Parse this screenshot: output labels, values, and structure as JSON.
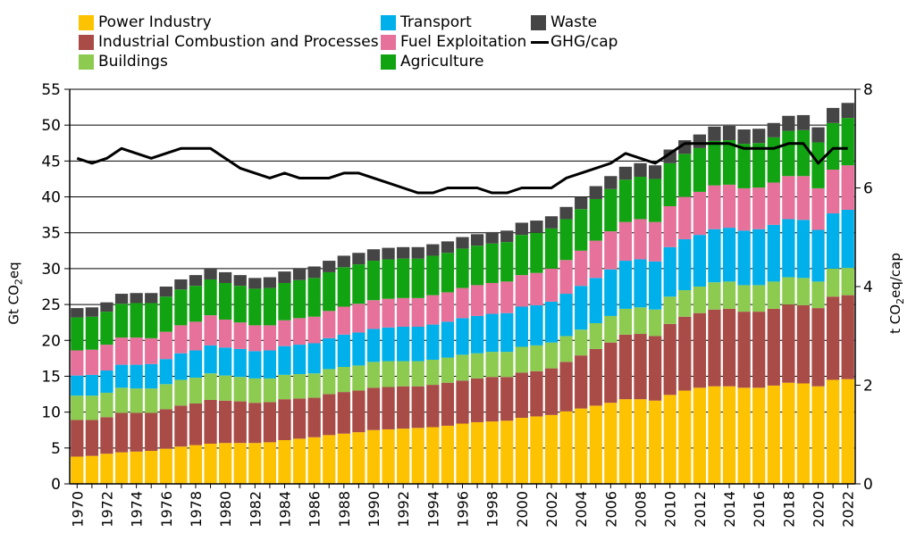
{
  "chart_data": {
    "type": "bar",
    "stacked": true,
    "x": [
      1970,
      1971,
      1972,
      1973,
      1974,
      1975,
      1976,
      1977,
      1978,
      1979,
      1980,
      1981,
      1982,
      1983,
      1984,
      1985,
      1986,
      1987,
      1988,
      1989,
      1990,
      1991,
      1992,
      1993,
      1994,
      1995,
      1996,
      1997,
      1998,
      1999,
      2000,
      2001,
      2002,
      2003,
      2004,
      2005,
      2006,
      2007,
      2008,
      2009,
      2010,
      2011,
      2012,
      2013,
      2014,
      2015,
      2016,
      2017,
      2018,
      2019,
      2020,
      2021,
      2022
    ],
    "x_tick_labels": [
      "1970",
      "1972",
      "1974",
      "1976",
      "1978",
      "1980",
      "1982",
      "1984",
      "1986",
      "1988",
      "1990",
      "1992",
      "1994",
      "1996",
      "1998",
      "2000",
      "2002",
      "2004",
      "2006",
      "2008",
      "2010",
      "2012",
      "2014",
      "2016",
      "2018",
      "2020",
      "2022"
    ],
    "series": [
      {
        "name": "Power Industry",
        "color": "#FDC300",
        "values": [
          3.8,
          3.9,
          4.2,
          4.4,
          4.5,
          4.6,
          4.9,
          5.2,
          5.4,
          5.6,
          5.7,
          5.7,
          5.7,
          5.8,
          6.1,
          6.3,
          6.5,
          6.8,
          7.0,
          7.2,
          7.5,
          7.6,
          7.7,
          7.8,
          7.9,
          8.1,
          8.4,
          8.6,
          8.7,
          8.8,
          9.2,
          9.4,
          9.6,
          10.1,
          10.5,
          10.9,
          11.3,
          11.8,
          11.8,
          11.6,
          12.4,
          13.0,
          13.4,
          13.6,
          13.6,
          13.4,
          13.4,
          13.7,
          14.1,
          14.0,
          13.6,
          14.5,
          14.6
        ]
      },
      {
        "name": "Industrial Combustion and Processes",
        "color": "#A94B47",
        "values": [
          5.1,
          5.0,
          5.1,
          5.5,
          5.4,
          5.3,
          5.5,
          5.7,
          5.8,
          6.1,
          5.9,
          5.8,
          5.6,
          5.6,
          5.7,
          5.6,
          5.5,
          5.7,
          5.8,
          5.8,
          5.9,
          5.9,
          5.9,
          5.8,
          5.9,
          6.0,
          6.0,
          6.1,
          6.2,
          6.1,
          6.3,
          6.3,
          6.5,
          6.9,
          7.4,
          7.9,
          8.4,
          9.0,
          9.1,
          9.0,
          9.9,
          10.3,
          10.4,
          10.7,
          10.8,
          10.6,
          10.6,
          10.7,
          10.9,
          10.9,
          10.9,
          11.6,
          11.7
        ]
      },
      {
        "name": "Buildings",
        "color": "#8CCB50",
        "values": [
          3.4,
          3.4,
          3.4,
          3.5,
          3.4,
          3.4,
          3.5,
          3.6,
          3.6,
          3.7,
          3.5,
          3.4,
          3.4,
          3.3,
          3.4,
          3.4,
          3.4,
          3.5,
          3.5,
          3.5,
          3.6,
          3.6,
          3.5,
          3.5,
          3.5,
          3.5,
          3.6,
          3.5,
          3.5,
          3.5,
          3.6,
          3.6,
          3.6,
          3.6,
          3.6,
          3.6,
          3.7,
          3.6,
          3.7,
          3.7,
          3.8,
          3.7,
          3.7,
          3.8,
          3.8,
          3.7,
          3.7,
          3.8,
          3.8,
          3.8,
          3.7,
          3.9,
          3.8
        ]
      },
      {
        "name": "Transport",
        "color": "#00B0EA",
        "values": [
          2.8,
          2.9,
          3.1,
          3.2,
          3.3,
          3.4,
          3.5,
          3.7,
          3.8,
          3.9,
          3.9,
          3.9,
          3.8,
          3.9,
          4.0,
          4.1,
          4.2,
          4.3,
          4.5,
          4.6,
          4.6,
          4.7,
          4.8,
          4.8,
          4.9,
          5.0,
          5.1,
          5.2,
          5.3,
          5.4,
          5.6,
          5.6,
          5.7,
          5.9,
          6.1,
          6.3,
          6.5,
          6.7,
          6.7,
          6.7,
          6.9,
          7.1,
          7.2,
          7.4,
          7.5,
          7.6,
          7.8,
          7.9,
          8.1,
          8.1,
          7.2,
          7.7,
          8.1
        ]
      },
      {
        "name": "Fuel Exploitation",
        "color": "#E6719B",
        "values": [
          3.5,
          3.5,
          3.6,
          3.8,
          3.8,
          3.6,
          3.8,
          3.9,
          4.0,
          4.2,
          3.9,
          3.7,
          3.6,
          3.5,
          3.6,
          3.7,
          3.7,
          3.8,
          3.9,
          4.0,
          4.0,
          4.0,
          4.0,
          4.0,
          4.1,
          4.1,
          4.2,
          4.3,
          4.3,
          4.4,
          4.4,
          4.5,
          4.6,
          4.7,
          4.9,
          5.2,
          5.3,
          5.4,
          5.6,
          5.5,
          5.7,
          5.9,
          6.0,
          6.1,
          6.0,
          5.9,
          5.8,
          5.9,
          6.0,
          6.1,
          5.8,
          6.1,
          6.2
        ]
      },
      {
        "name": "Agriculture",
        "color": "#12A312",
        "values": [
          4.6,
          4.6,
          4.6,
          4.7,
          4.8,
          4.9,
          4.9,
          5.0,
          5.0,
          5.0,
          5.1,
          5.1,
          5.1,
          5.2,
          5.2,
          5.3,
          5.4,
          5.4,
          5.5,
          5.5,
          5.5,
          5.5,
          5.5,
          5.5,
          5.5,
          5.5,
          5.5,
          5.5,
          5.5,
          5.5,
          5.6,
          5.6,
          5.6,
          5.7,
          5.8,
          5.8,
          5.9,
          5.9,
          5.9,
          6.0,
          6.0,
          6.0,
          6.1,
          6.2,
          6.2,
          6.2,
          6.2,
          6.3,
          6.3,
          6.4,
          6.4,
          6.5,
          6.6
        ]
      },
      {
        "name": "Waste",
        "color": "#454545",
        "values": [
          1.3,
          1.3,
          1.3,
          1.4,
          1.4,
          1.4,
          1.4,
          1.4,
          1.5,
          1.5,
          1.5,
          1.5,
          1.5,
          1.5,
          1.6,
          1.6,
          1.6,
          1.6,
          1.6,
          1.6,
          1.6,
          1.6,
          1.6,
          1.6,
          1.6,
          1.6,
          1.6,
          1.6,
          1.6,
          1.6,
          1.7,
          1.7,
          1.7,
          1.7,
          1.7,
          1.8,
          1.8,
          1.8,
          1.9,
          1.9,
          1.9,
          1.9,
          1.9,
          2.0,
          2.0,
          2.0,
          2.0,
          2.0,
          2.1,
          2.1,
          2.1,
          2.1,
          2.1
        ]
      }
    ],
    "line_series": {
      "name": "GHG/cap",
      "color": "#000000",
      "axis": "right",
      "values": [
        6.6,
        6.5,
        6.6,
        6.8,
        6.7,
        6.6,
        6.7,
        6.8,
        6.8,
        6.8,
        6.6,
        6.4,
        6.3,
        6.2,
        6.3,
        6.2,
        6.2,
        6.2,
        6.3,
        6.3,
        6.2,
        6.1,
        6.0,
        5.9,
        5.9,
        6.0,
        6.0,
        6.0,
        5.9,
        5.9,
        6.0,
        6.0,
        6.0,
        6.2,
        6.3,
        6.4,
        6.5,
        6.7,
        6.6,
        6.5,
        6.7,
        6.9,
        6.9,
        6.9,
        6.9,
        6.8,
        6.8,
        6.8,
        6.9,
        6.9,
        6.5,
        6.8,
        6.8
      ]
    },
    "y_left": {
      "label": "Gt CO",
      "label_sub": "2",
      "label_suffix": "eq",
      "range": [
        0,
        55
      ],
      "ticks": [
        0,
        5,
        10,
        15,
        20,
        25,
        30,
        35,
        40,
        45,
        50,
        55
      ]
    },
    "y_right": {
      "label": "t CO",
      "label_sub": "2",
      "label_suffix": "eq/cap",
      "range": [
        0,
        8
      ],
      "ticks": [
        0,
        2,
        4,
        6,
        8
      ]
    },
    "grid": "horizontal",
    "legend_position": "top"
  },
  "legend": [
    {
      "label": "Power Industry",
      "color": "#FDC300",
      "kind": "box"
    },
    {
      "label": "Industrial Combustion and Processes",
      "color": "#A94B47",
      "kind": "box"
    },
    {
      "label": "Buildings",
      "color": "#8CCB50",
      "kind": "box"
    },
    {
      "label": "Transport",
      "color": "#00B0EA",
      "kind": "box"
    },
    {
      "label": "Fuel Exploitation",
      "color": "#E6719B",
      "kind": "box"
    },
    {
      "label": "Agriculture",
      "color": "#12A312",
      "kind": "box"
    },
    {
      "label": "Waste",
      "color": "#454545",
      "kind": "box"
    },
    {
      "label": "GHG/cap",
      "color": "#000000",
      "kind": "line"
    }
  ]
}
